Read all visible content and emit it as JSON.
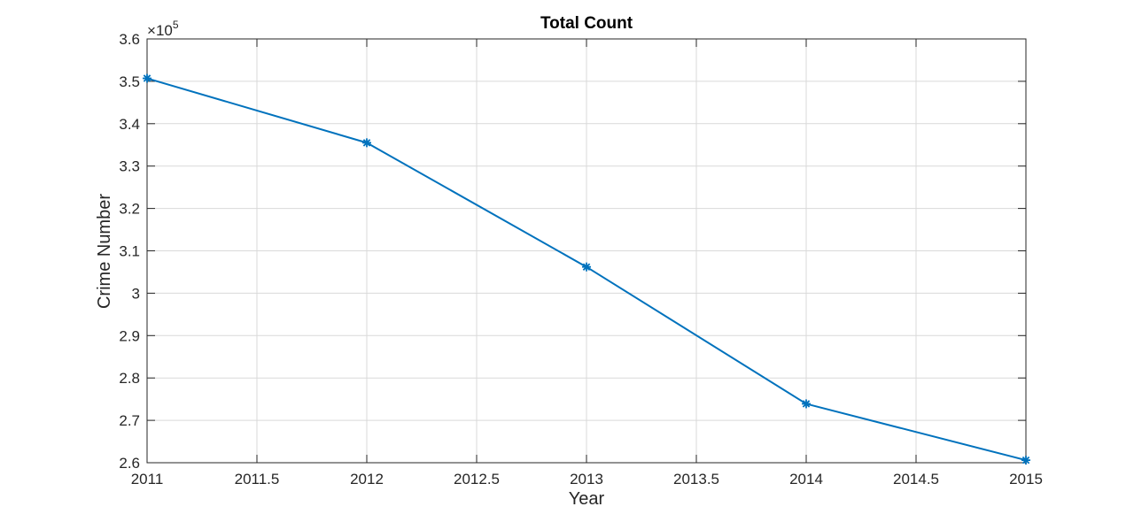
{
  "chart_data": {
    "type": "line",
    "title": "Total Count",
    "xlabel": "Year",
    "ylabel": "Crime Number",
    "y_exponent_base": "10",
    "y_exponent_power": "5",
    "xlim": [
      2011,
      2015
    ],
    "ylim": [
      2.6,
      3.6
    ],
    "y_scale_note": "values in units of 10^5",
    "grid": true,
    "x_ticks": [
      "2011",
      "2011.5",
      "2012",
      "2012.5",
      "2013",
      "2013.5",
      "2014",
      "2014.5",
      "2015"
    ],
    "x_tick_values": [
      2011,
      2011.5,
      2012,
      2012.5,
      2013,
      2013.5,
      2014,
      2014.5,
      2015
    ],
    "y_ticks": [
      "2.6",
      "2.7",
      "2.8",
      "2.9",
      "3",
      "3.1",
      "3.2",
      "3.3",
      "3.4",
      "3.5",
      "3.6"
    ],
    "y_tick_values": [
      2.6,
      2.7,
      2.8,
      2.9,
      3.0,
      3.1,
      3.2,
      3.3,
      3.4,
      3.5,
      3.6
    ],
    "series": [
      {
        "color": "#0072BD",
        "marker": "asterisk",
        "x": [
          2011,
          2012,
          2013,
          2014,
          2015
        ],
        "y": [
          3.507,
          3.355,
          3.062,
          2.739,
          2.606
        ]
      }
    ]
  }
}
